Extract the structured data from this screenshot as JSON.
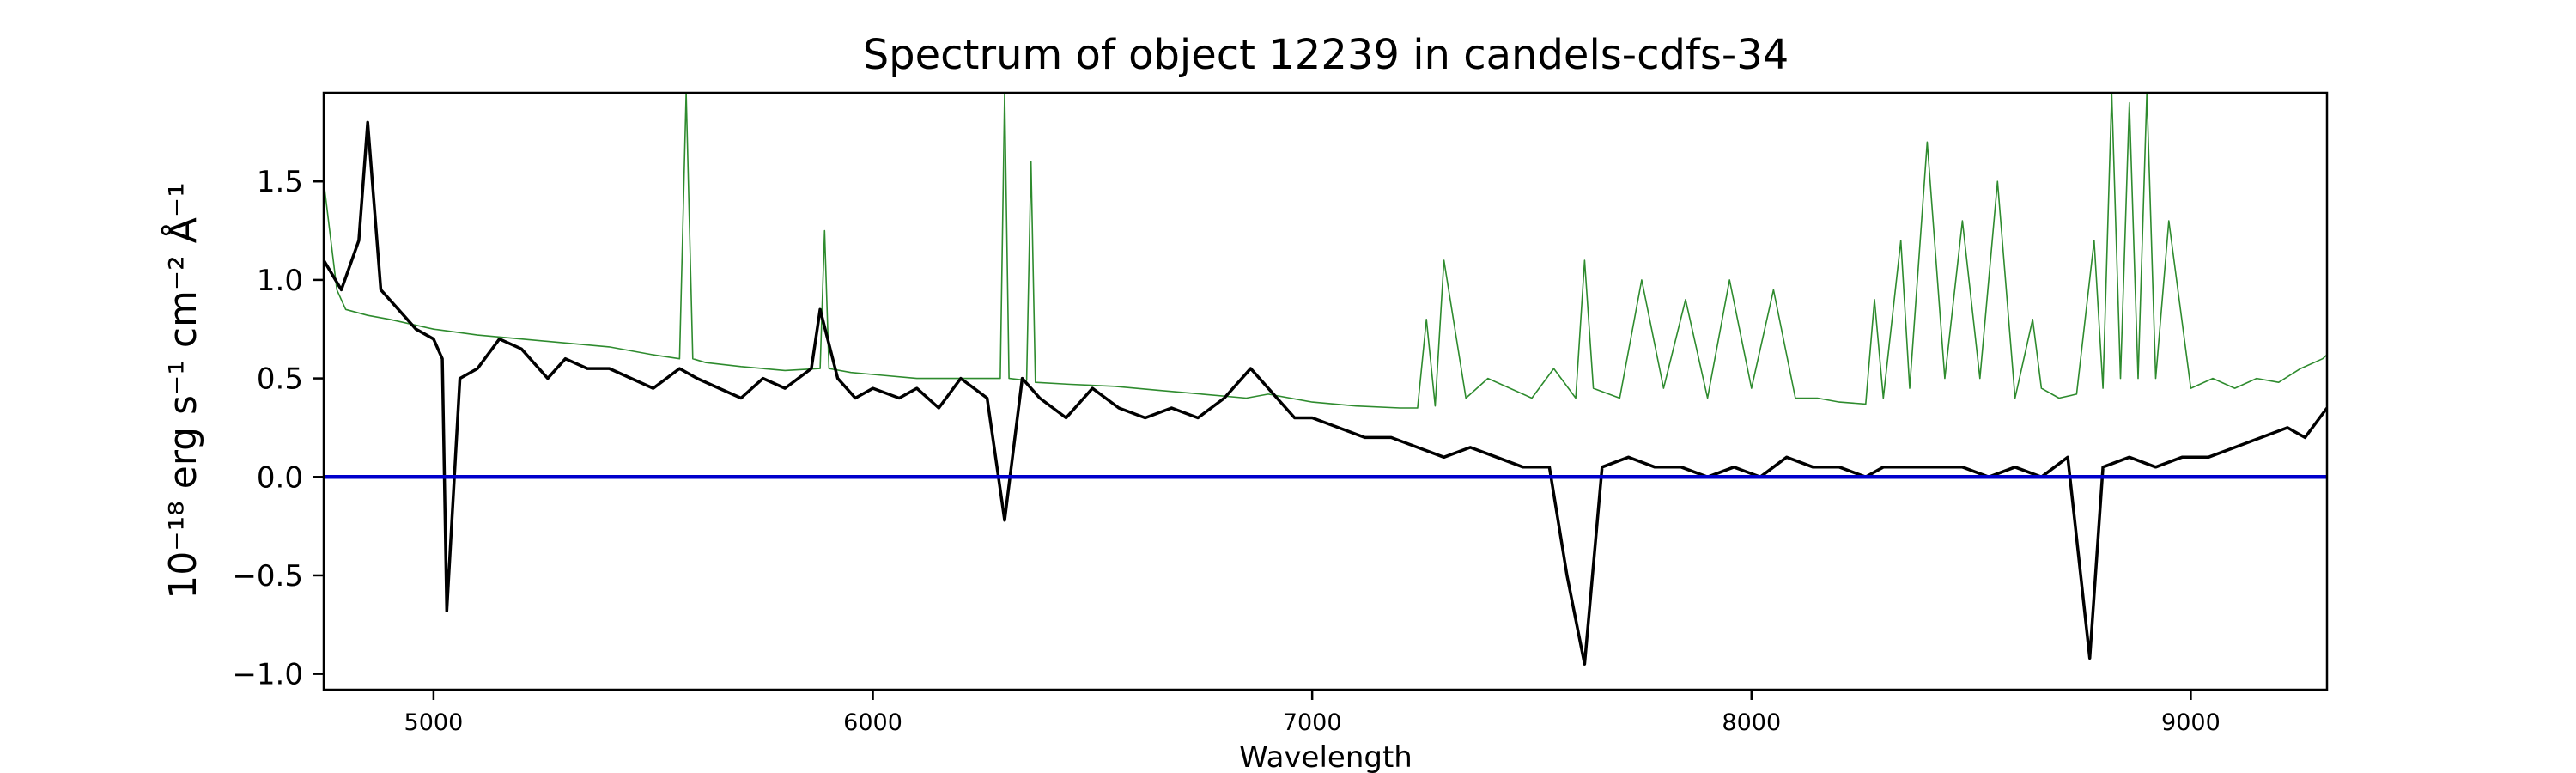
{
  "chart_data": {
    "type": "line",
    "title": "Spectrum of object 12239 in candels-cdfs-34",
    "xlabel": "Wavelength",
    "ylabel": "10⁻¹⁸ erg s⁻¹ cm⁻² Å⁻¹",
    "xlim": [
      4750,
      9310
    ],
    "ylim": [
      -1.08,
      1.95
    ],
    "x_ticks": [
      5000,
      6000,
      7000,
      8000,
      9000
    ],
    "x_tick_labels": [
      "5000",
      "6000",
      "7000",
      "8000",
      "9000"
    ],
    "y_ticks": [
      -1.0,
      -0.5,
      0.0,
      0.5,
      1.0,
      1.5
    ],
    "y_tick_labels": [
      "−1.0",
      "−0.5",
      "0.0",
      "0.5",
      "1.0",
      "1.5"
    ],
    "grid": false,
    "legend": false,
    "series": [
      {
        "role": "flux",
        "color": "#000000",
        "x": [
          4750,
          4790,
          4830,
          4850,
          4880,
          4920,
          4960,
          5000,
          5020,
          5030,
          5060,
          5100,
          5150,
          5200,
          5260,
          5300,
          5350,
          5400,
          5450,
          5500,
          5560,
          5600,
          5650,
          5700,
          5750,
          5800,
          5860,
          5880,
          5920,
          5960,
          6000,
          6060,
          6100,
          6150,
          6200,
          6260,
          6300,
          6340,
          6380,
          6440,
          6500,
          6560,
          6620,
          6680,
          6740,
          6800,
          6860,
          6900,
          6960,
          7000,
          7060,
          7120,
          7180,
          7240,
          7300,
          7360,
          7420,
          7480,
          7540,
          7580,
          7620,
          7660,
          7720,
          7780,
          7840,
          7900,
          7960,
          8020,
          8080,
          8140,
          8200,
          8260,
          8300,
          8360,
          8420,
          8480,
          8540,
          8600,
          8660,
          8720,
          8770,
          8800,
          8860,
          8920,
          8980,
          9040,
          9100,
          9160,
          9220,
          9260,
          9310
        ],
        "y": [
          1.1,
          0.95,
          1.2,
          1.8,
          0.95,
          0.85,
          0.75,
          0.7,
          0.6,
          -0.68,
          0.5,
          0.55,
          0.7,
          0.65,
          0.5,
          0.6,
          0.55,
          0.55,
          0.5,
          0.45,
          0.55,
          0.5,
          0.45,
          0.4,
          0.5,
          0.45,
          0.55,
          0.85,
          0.5,
          0.4,
          0.45,
          0.4,
          0.45,
          0.35,
          0.5,
          0.4,
          -0.22,
          0.5,
          0.4,
          0.3,
          0.45,
          0.35,
          0.3,
          0.35,
          0.3,
          0.4,
          0.55,
          0.45,
          0.3,
          0.3,
          0.25,
          0.2,
          0.2,
          0.15,
          0.1,
          0.15,
          0.1,
          0.05,
          0.05,
          -0.5,
          -0.95,
          0.05,
          0.1,
          0.05,
          0.05,
          0.0,
          0.05,
          0.0,
          0.1,
          0.05,
          0.05,
          0.0,
          0.05,
          0.05,
          0.05,
          0.05,
          0.0,
          0.05,
          0.0,
          0.1,
          -0.92,
          0.05,
          0.1,
          0.05,
          0.1,
          0.1,
          0.15,
          0.2,
          0.25,
          0.2,
          0.35
        ]
      },
      {
        "role": "model",
        "color": "#2e8b2e",
        "x": [
          4750,
          4780,
          4800,
          4850,
          4900,
          5000,
          5100,
          5200,
          5300,
          5400,
          5500,
          5560,
          5575,
          5590,
          5620,
          5700,
          5800,
          5880,
          5890,
          5900,
          5950,
          6000,
          6100,
          6200,
          6290,
          6300,
          6310,
          6350,
          6360,
          6370,
          6450,
          6550,
          6650,
          6750,
          6850,
          6900,
          7000,
          7100,
          7200,
          7240,
          7260,
          7280,
          7300,
          7350,
          7400,
          7500,
          7550,
          7600,
          7620,
          7640,
          7700,
          7750,
          7800,
          7850,
          7900,
          7950,
          8000,
          8050,
          8100,
          8150,
          8200,
          8260,
          8280,
          8300,
          8340,
          8360,
          8400,
          8440,
          8480,
          8520,
          8560,
          8600,
          8640,
          8660,
          8700,
          8740,
          8780,
          8800,
          8820,
          8840,
          8860,
          8880,
          8900,
          8920,
          8950,
          9000,
          9050,
          9100,
          9150,
          9200,
          9250,
          9300,
          9310
        ],
        "y": [
          1.5,
          0.95,
          0.85,
          0.82,
          0.8,
          0.75,
          0.72,
          0.7,
          0.68,
          0.66,
          0.62,
          0.6,
          1.95,
          0.6,
          0.58,
          0.56,
          0.54,
          0.55,
          1.25,
          0.55,
          0.53,
          0.52,
          0.5,
          0.5,
          0.5,
          1.95,
          0.5,
          0.49,
          1.6,
          0.48,
          0.47,
          0.46,
          0.44,
          0.42,
          0.4,
          0.42,
          0.38,
          0.36,
          0.35,
          0.35,
          0.8,
          0.36,
          1.1,
          0.4,
          0.5,
          0.4,
          0.55,
          0.4,
          1.1,
          0.45,
          0.4,
          1.0,
          0.45,
          0.9,
          0.4,
          1.0,
          0.45,
          0.95,
          0.4,
          0.4,
          0.38,
          0.37,
          0.9,
          0.4,
          1.2,
          0.45,
          1.7,
          0.5,
          1.3,
          0.5,
          1.5,
          0.4,
          0.8,
          0.45,
          0.4,
          0.42,
          1.2,
          0.45,
          1.95,
          0.5,
          1.9,
          0.5,
          1.95,
          0.5,
          1.3,
          0.45,
          0.5,
          0.45,
          0.5,
          0.48,
          0.55,
          0.6,
          0.62
        ]
      },
      {
        "role": "zero-line",
        "color": "#0000cc",
        "x": [
          4750,
          9310
        ],
        "y": [
          0.0,
          0.0
        ]
      }
    ]
  }
}
